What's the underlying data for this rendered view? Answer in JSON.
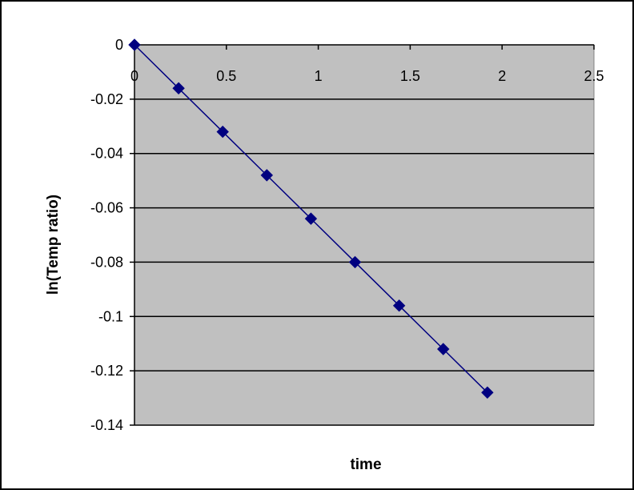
{
  "chart_data": {
    "type": "scatter",
    "title": "",
    "xlabel": "time",
    "ylabel": "ln(Temp ratio)",
    "xlim": [
      0,
      2.5
    ],
    "ylim": [
      -0.14,
      0
    ],
    "x_ticks": [
      0,
      0.5,
      1,
      1.5,
      2,
      2.5
    ],
    "x_tick_labels": [
      "0",
      "0.5",
      "1",
      "1.5",
      "2",
      "2.5"
    ],
    "y_ticks": [
      0,
      -0.02,
      -0.04,
      -0.06,
      -0.08,
      -0.1,
      -0.12,
      -0.14
    ],
    "y_tick_labels": [
      "0",
      "-0.02",
      "-0.04",
      "-0.06",
      "-0.08",
      "-0.1",
      "-0.12",
      "-0.14"
    ],
    "grid": "horizontal",
    "legend": "none",
    "colors": {
      "plot_area": "#c0c0c0",
      "series": "#000080",
      "grid": "#000000"
    },
    "series": [
      {
        "marker": "diamond",
        "line": true,
        "x": [
          0,
          0.24,
          0.48,
          0.72,
          0.96,
          1.2,
          1.44,
          1.68,
          1.92
        ],
        "y": [
          0,
          -0.016,
          -0.032,
          -0.048,
          -0.064,
          -0.08,
          -0.096,
          -0.112,
          -0.128
        ]
      }
    ]
  }
}
